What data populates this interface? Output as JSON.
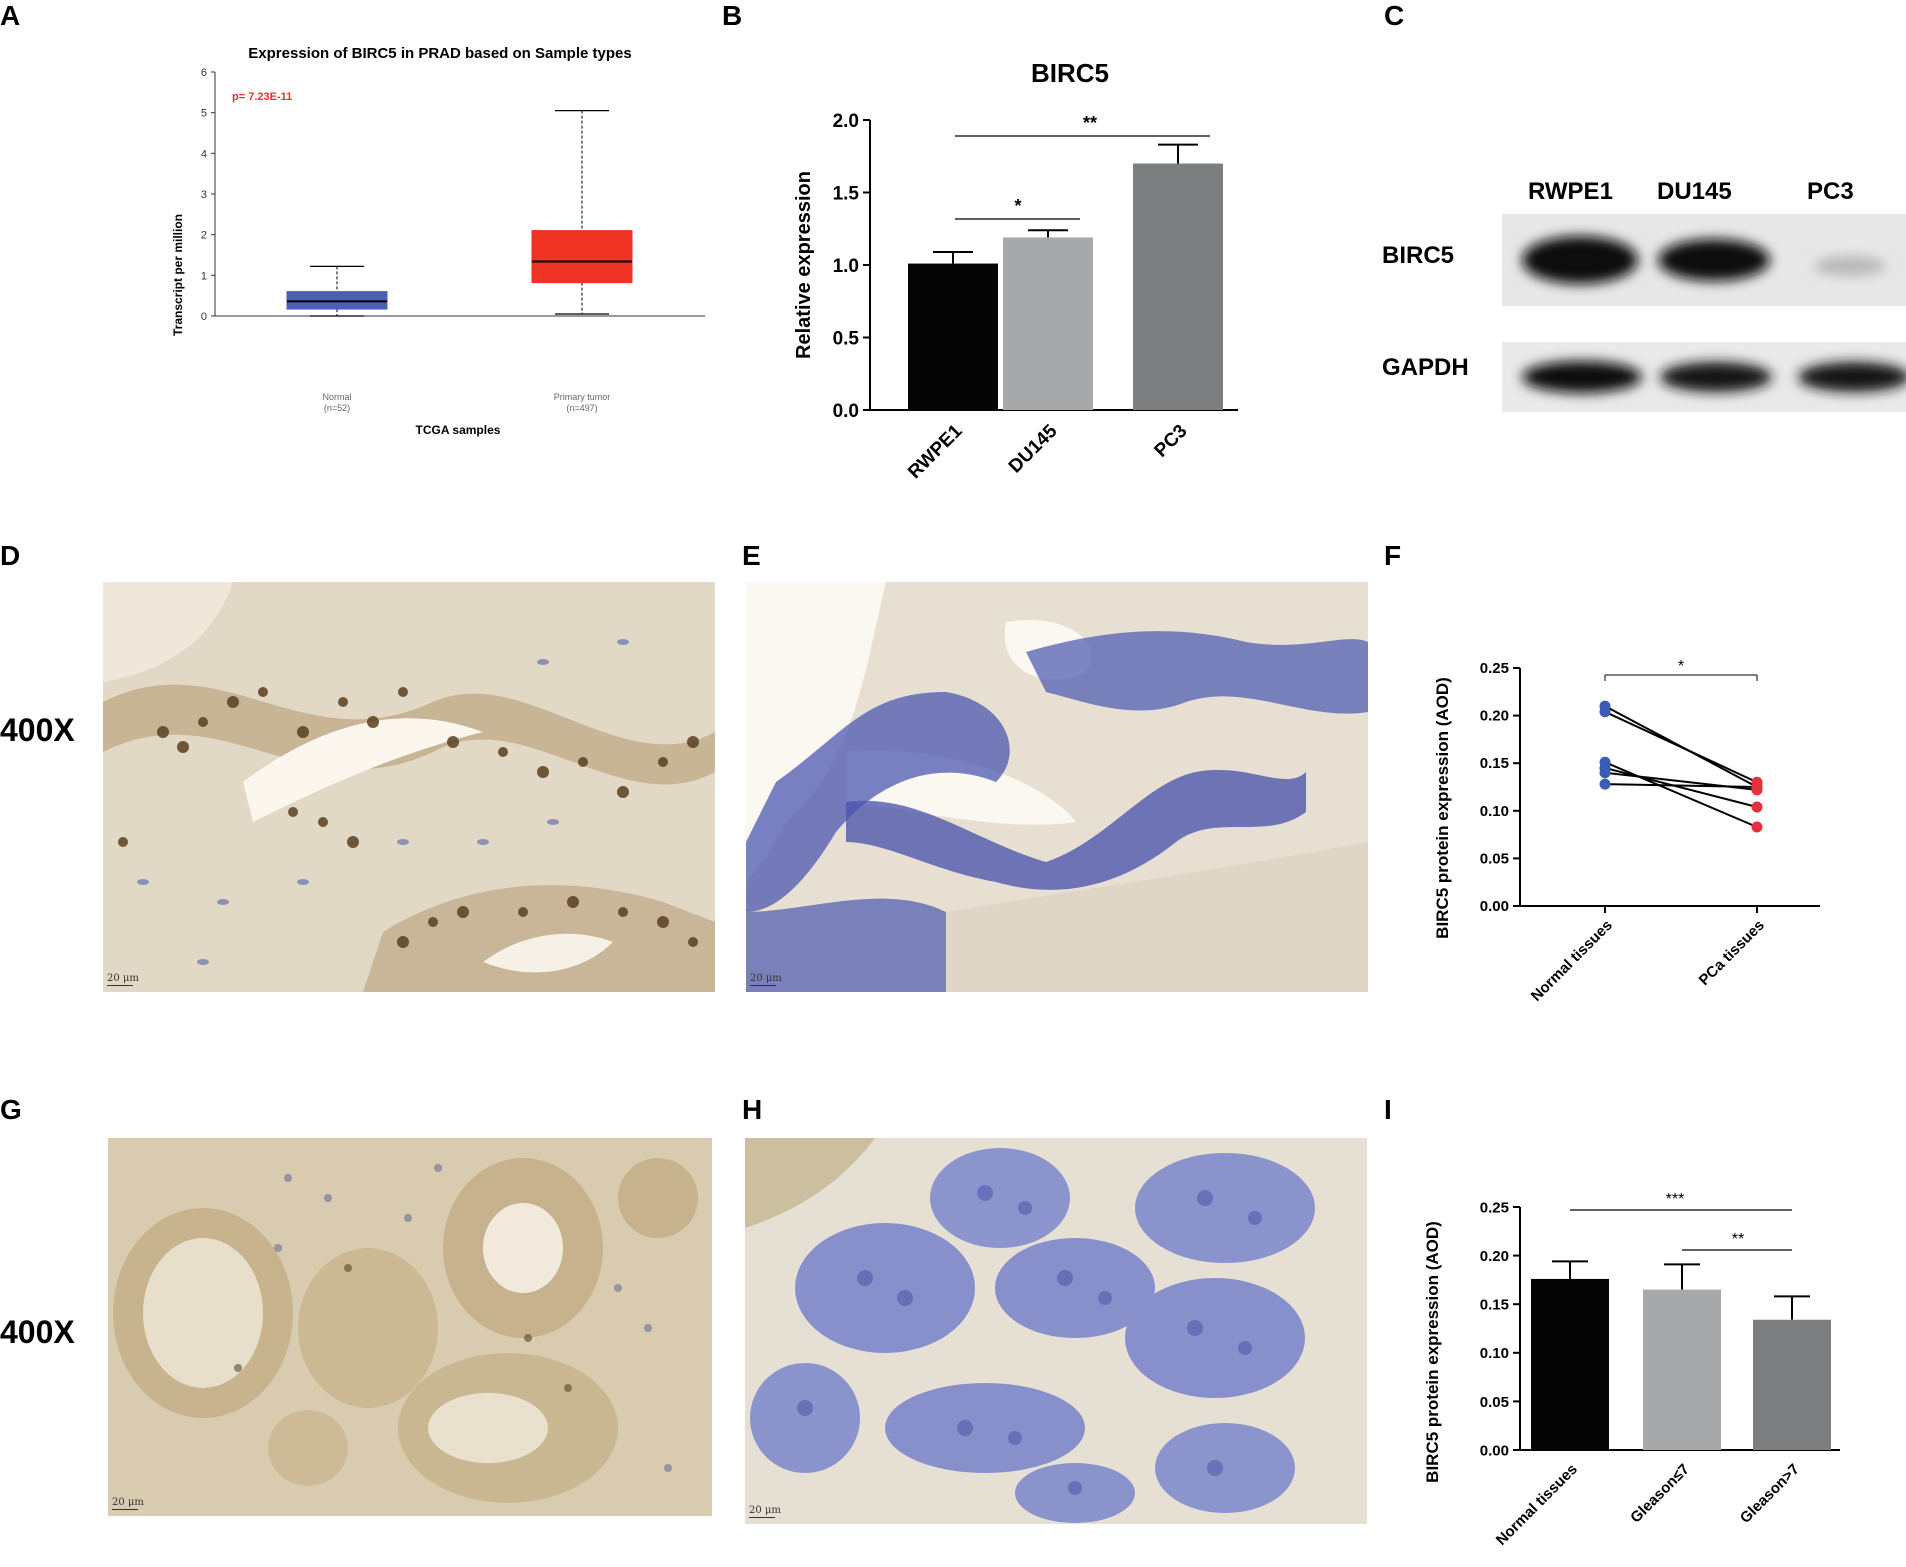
{
  "panels": {
    "A": {
      "label": "A",
      "title": "Expression of BIRC5 in PRAD based on Sample types",
      "pvalue": "p= 7.23E-11",
      "ylabel": "Transcript per million",
      "xlabel": "TCGA samples",
      "groups": [
        {
          "name": "Normal",
          "n": "(n=52)"
        },
        {
          "name": "Primary tumor",
          "n": "(n=497)"
        }
      ]
    },
    "B": {
      "label": "B",
      "title": "BIRC5",
      "ylabel": "Relative expression",
      "sig1": "*",
      "sig2": "**"
    },
    "C": {
      "label": "C",
      "lanes": [
        "RWPE1",
        "DU145",
        "PC3"
      ],
      "rows": [
        "BIRC5",
        "GAPDH"
      ]
    },
    "D": {
      "label": "D",
      "magnification": "400X",
      "scale": "20 μm"
    },
    "E": {
      "label": "E",
      "scale": "20 μm"
    },
    "F": {
      "label": "F",
      "ylabel": "BIRC5 protein expression (AOD)",
      "sig": "*"
    },
    "G": {
      "label": "G",
      "magnification": "400X",
      "scale": "20 μm"
    },
    "H": {
      "label": "H",
      "scale": "20 μm"
    },
    "I": {
      "label": "I",
      "ylabel": "BIRC5 protein expression (AOD)",
      "sig1": "***",
      "sig2": "**"
    }
  },
  "chart_data": [
    {
      "panel": "A",
      "type": "box",
      "title": "Expression of BIRC5 in PRAD based on Sample types",
      "xlabel": "TCGA samples",
      "ylabel": "Transcript per million",
      "ylim": [
        0,
        6
      ],
      "yticks": [
        0,
        1,
        2,
        3,
        4,
        5,
        6
      ],
      "categories": [
        "Normal",
        "Primary tumor"
      ],
      "boxes": [
        {
          "min": 0.0,
          "q1": 0.17,
          "median": 0.36,
          "q3": 0.6,
          "max": 1.22,
          "color": "#4c5fb5"
        },
        {
          "min": 0.05,
          "q1": 0.82,
          "median": 1.34,
          "q3": 2.1,
          "max": 5.05,
          "color": "#ee3224"
        }
      ]
    },
    {
      "panel": "B",
      "type": "bar",
      "title": "BIRC5",
      "ylabel": "Relative expression",
      "ylim": [
        0,
        2.0
      ],
      "yticks": [
        "0.0",
        "0.5",
        "1.0",
        "1.5",
        "2.0"
      ],
      "categories": [
        "RWPE1",
        "DU145",
        "PC3"
      ],
      "values": [
        1.01,
        1.19,
        1.7
      ],
      "errors": [
        0.08,
        0.05,
        0.13
      ],
      "colors": [
        "#050505",
        "#a7a8aa",
        "#7d7e80"
      ]
    },
    {
      "panel": "F",
      "type": "paired-scatter",
      "ylabel": "BIRC5 protein expression (AOD)",
      "ylim": [
        0,
        0.25
      ],
      "yticks": [
        "0.00",
        "0.05",
        "0.10",
        "0.15",
        "0.20",
        "0.25"
      ],
      "categories": [
        "Normal tissues",
        "PCa tissues"
      ],
      "pairs": [
        [
          0.21,
          0.125
        ],
        [
          0.204,
          0.13
        ],
        [
          0.151,
          0.083
        ],
        [
          0.145,
          0.104
        ],
        [
          0.14,
          0.122
        ],
        [
          0.128,
          0.125
        ]
      ],
      "colors": [
        "#3b5bb5",
        "#e8303d"
      ]
    },
    {
      "panel": "I",
      "type": "bar",
      "ylabel": "BIRC5 protein expression (AOD)",
      "ylim": [
        0,
        0.25
      ],
      "yticks": [
        "0.00",
        "0.05",
        "0.10",
        "0.15",
        "0.20",
        "0.25"
      ],
      "categories": [
        "Normal tissues",
        "Gleason≤7",
        "Gleason>7"
      ],
      "values": [
        0.176,
        0.165,
        0.134
      ],
      "errors": [
        0.018,
        0.026,
        0.024
      ],
      "colors": [
        "#050505",
        "#a7a8aa",
        "#7d7e80"
      ]
    }
  ]
}
